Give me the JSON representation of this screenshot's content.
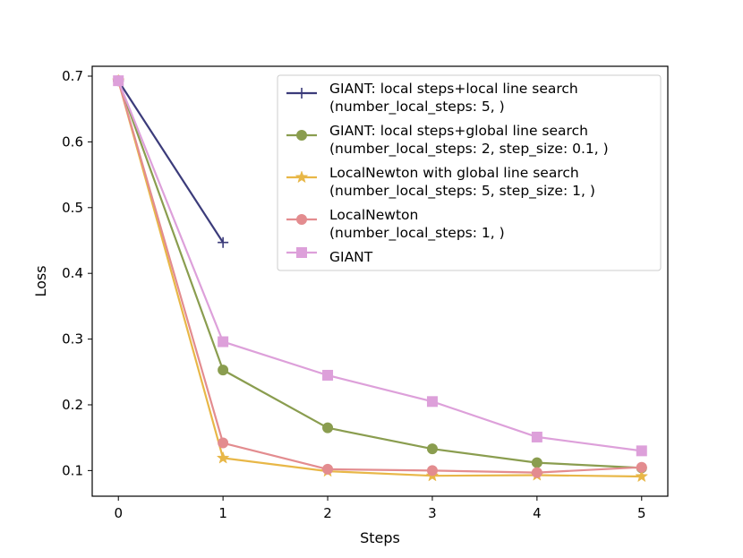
{
  "chart_data": {
    "type": "line",
    "title": "",
    "xlabel": "Steps",
    "ylabel": "Loss",
    "xlim": [
      -0.25,
      5.25
    ],
    "ylim": [
      0.061,
      0.715
    ],
    "xticks": [
      0,
      1,
      2,
      3,
      4,
      5
    ],
    "yticks": [
      0.1,
      0.2,
      0.3,
      0.4,
      0.5,
      0.6,
      0.7
    ],
    "xtick_labels": [
      "0",
      "1",
      "2",
      "3",
      "4",
      "5"
    ],
    "ytick_labels": [
      "0.1",
      "0.2",
      "0.3",
      "0.4",
      "0.5",
      "0.6",
      "0.7"
    ],
    "grid": false,
    "legend_position": "top-right",
    "series": [
      {
        "name": [
          "GIANT: local steps+local line search",
          "(number_local_steps: 5, )"
        ],
        "color": "#3b3b7a",
        "marker": "plus",
        "x": [
          0,
          1
        ],
        "values": [
          0.693,
          0.447
        ]
      },
      {
        "name": [
          "GIANT: local steps+global line search",
          "(number_local_steps: 2, step_size: 0.1, )"
        ],
        "color": "#8a9d4f",
        "marker": "circle",
        "x": [
          0,
          1,
          2,
          3,
          4,
          5
        ],
        "values": [
          0.693,
          0.253,
          0.165,
          0.133,
          0.112,
          0.104
        ]
      },
      {
        "name": [
          "LocalNewton with global line search",
          "(number_local_steps: 5, step_size: 1, )"
        ],
        "color": "#e8b747",
        "marker": "star",
        "x": [
          0,
          1,
          2,
          3,
          4,
          5
        ],
        "values": [
          0.693,
          0.119,
          0.099,
          0.092,
          0.093,
          0.091
        ]
      },
      {
        "name": [
          "LocalNewton",
          "(number_local_steps: 1, )"
        ],
        "color": "#e38c8f",
        "marker": "circle",
        "x": [
          0,
          1,
          2,
          3,
          4,
          5
        ],
        "values": [
          0.693,
          0.142,
          0.102,
          0.1,
          0.097,
          0.105
        ]
      },
      {
        "name": [
          "GIANT"
        ],
        "color": "#dda0da",
        "marker": "square",
        "x": [
          0,
          1,
          2,
          3,
          4,
          5
        ],
        "values": [
          0.693,
          0.296,
          0.245,
          0.205,
          0.151,
          0.13
        ]
      }
    ]
  }
}
